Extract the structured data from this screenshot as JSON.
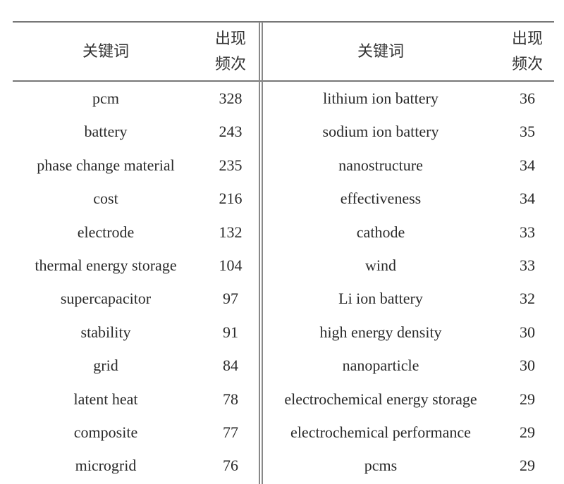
{
  "header": {
    "keyword": "关键词",
    "frequency_line1": "出现",
    "frequency_line2": "频次"
  },
  "left": [
    {
      "keyword": "pcm",
      "count": "328"
    },
    {
      "keyword": "battery",
      "count": "243"
    },
    {
      "keyword": "phase change material",
      "count": "235"
    },
    {
      "keyword": "cost",
      "count": "216"
    },
    {
      "keyword": "electrode",
      "count": "132"
    },
    {
      "keyword": "thermal energy storage",
      "count": "104"
    },
    {
      "keyword": "supercapacitor",
      "count": "97"
    },
    {
      "keyword": "stability",
      "count": "91"
    },
    {
      "keyword": "grid",
      "count": "84"
    },
    {
      "keyword": "latent heat",
      "count": "78"
    },
    {
      "keyword": "composite",
      "count": "77"
    },
    {
      "keyword": "microgrid",
      "count": "76"
    }
  ],
  "right": [
    {
      "keyword": "lithium ion battery",
      "count": "36"
    },
    {
      "keyword": "sodium ion battery",
      "count": "35"
    },
    {
      "keyword": "nanostructure",
      "count": "34"
    },
    {
      "keyword": "effectiveness",
      "count": "34"
    },
    {
      "keyword": "cathode",
      "count": "33"
    },
    {
      "keyword": "wind",
      "count": "33"
    },
    {
      "keyword": "Li ion battery",
      "count": "32"
    },
    {
      "keyword": "high energy density",
      "count": "30"
    },
    {
      "keyword": "nanoparticle",
      "count": "30"
    },
    {
      "keyword": "electrochemical energy storage",
      "count": "29"
    },
    {
      "keyword": "electrochemical performance",
      "count": "29"
    },
    {
      "keyword": "pcms",
      "count": "29"
    }
  ]
}
